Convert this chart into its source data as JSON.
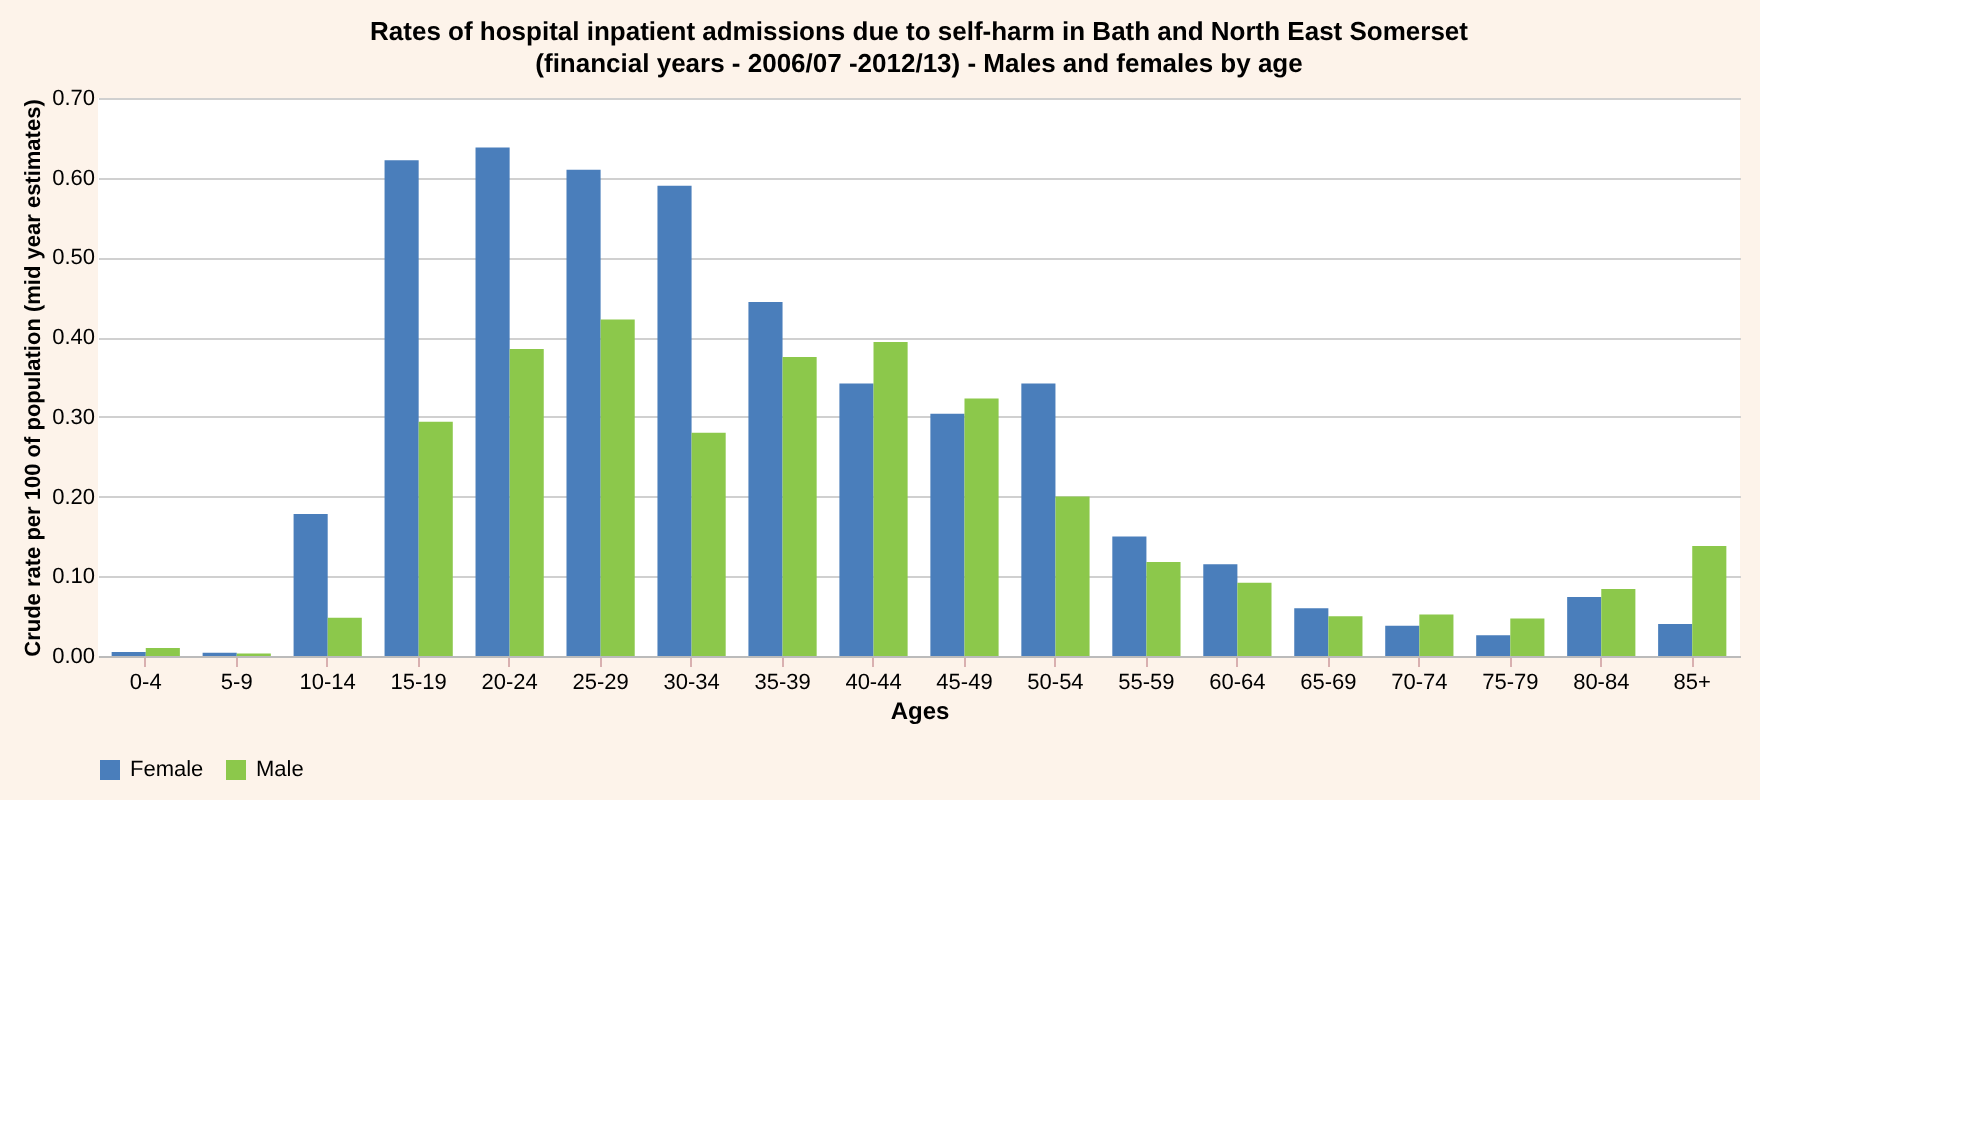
{
  "chart_data": {
    "type": "bar",
    "title": "Rates of hospital inpatient admissions due to self-harm in Bath and North East Somerset",
    "subtitle": "(financial years - 2006/07 -2012/13) - Males and females by age",
    "xlabel": "Ages",
    "ylabel": "Crude rate per 100 of population (mid year estimates)",
    "categories": [
      "0-4",
      "5-9",
      "10-14",
      "15-19",
      "20-24",
      "25-29",
      "30-34",
      "35-39",
      "40-44",
      "45-49",
      "50-54",
      "55-59",
      "60-64",
      "65-69",
      "70-74",
      "75-79",
      "80-84",
      "85+"
    ],
    "series": [
      {
        "name": "Female",
        "color": "#4a7ebb",
        "values": [
          0.005,
          0.004,
          0.178,
          0.622,
          0.638,
          0.61,
          0.59,
          0.444,
          0.342,
          0.304,
          0.342,
          0.15,
          0.115,
          0.06,
          0.038,
          0.026,
          0.074,
          0.04
        ]
      },
      {
        "name": "Male",
        "color": "#8cc84b",
        "values": [
          0.01,
          0.003,
          0.048,
          0.294,
          0.385,
          0.422,
          0.28,
          0.375,
          0.394,
          0.323,
          0.2,
          0.118,
          0.092,
          0.05,
          0.052,
          0.047,
          0.084,
          0.138
        ]
      }
    ],
    "ylim": [
      0,
      0.7
    ],
    "yticks": [
      {
        "value": 0,
        "label": "0.00"
      },
      {
        "value": 0.1,
        "label": "0.10"
      },
      {
        "value": 0.2,
        "label": "0.20"
      },
      {
        "value": 0.3,
        "label": "0.30"
      },
      {
        "value": 0.4,
        "label": "0.40"
      },
      {
        "value": 0.5,
        "label": "0.50"
      },
      {
        "value": 0.6,
        "label": "0.60"
      },
      {
        "value": 0.7,
        "label": "0.70"
      }
    ],
    "grid": "y",
    "legend": "bottom"
  }
}
